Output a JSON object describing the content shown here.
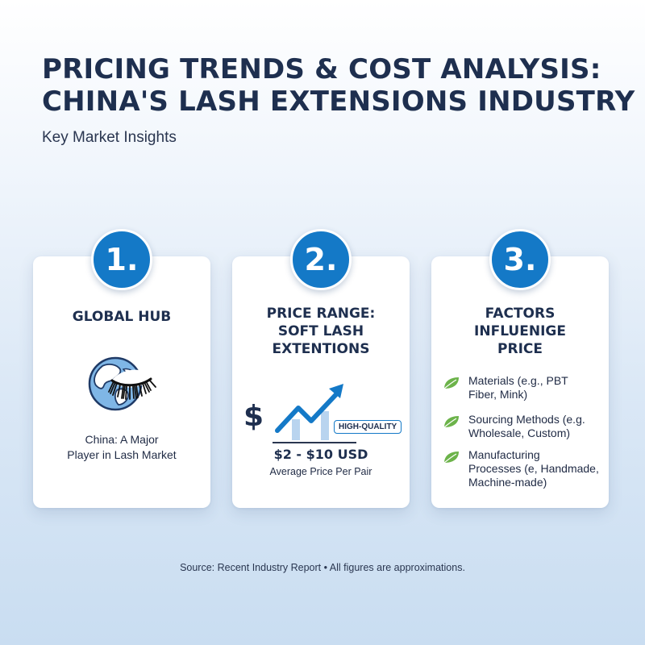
{
  "header": {
    "title_line1": "PRICING TRENDS & COST ANALYSIS:",
    "title_line2": "CHINA'S LASH EXTENSIONS INDUSTRY",
    "subtitle": "Key Market Insights"
  },
  "cards": [
    {
      "number": "1.",
      "heading": [
        "GLOBAL HUB"
      ],
      "icon": "globe-with-lash-icon",
      "caption": [
        "China: A Major",
        "Player in Lash Market"
      ]
    },
    {
      "number": "2.",
      "heading": [
        "PRICE RANGE:",
        "SOFT LASH",
        "EXTENTIONS"
      ],
      "icon": "rising-price-chart-icon",
      "currency_symbol": "$",
      "tag": "HIGH-QUALITY",
      "price": "$2 - $10 USD",
      "price_caption": "Average Price Per Pair"
    },
    {
      "number": "3.",
      "heading": [
        "FACTORS",
        "INFLUENIGE",
        "PRICE"
      ],
      "icon": "leaf-icon",
      "factors": [
        [
          "Materials (e.g., PBT",
          "Fiber, Mink)"
        ],
        [
          "Sourcing Methods (e.g.",
          "Wholesale, Custom)"
        ],
        [
          "Manufacturing",
          "Processes (e, Handmade,",
          "Machine-made)"
        ]
      ]
    }
  ],
  "colors": {
    "accent": "#1479c7",
    "leaf_green": "#6cb34a",
    "title": "#1e2f4f"
  },
  "footer": {
    "source": "Source: Recent Industry Report • All figures are approximations."
  }
}
